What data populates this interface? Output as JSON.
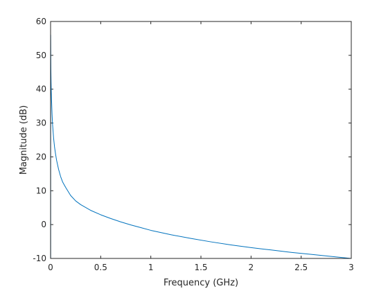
{
  "chart_data": {
    "type": "line",
    "title": "",
    "xlabel": "Frequency (GHz)",
    "ylabel": "Magnitude (dB)",
    "xlim": [
      0,
      3
    ],
    "ylim": [
      -10,
      60
    ],
    "xticks": [
      0,
      0.5,
      1,
      1.5,
      2,
      2.5,
      3
    ],
    "xtick_labels": [
      "0",
      "0.5",
      "1",
      "1.5",
      "2",
      "2.5",
      "3"
    ],
    "yticks": [
      -10,
      0,
      10,
      20,
      30,
      40,
      50,
      60
    ],
    "ytick_labels": [
      "-10",
      "0",
      "10",
      "20",
      "30",
      "40",
      "50",
      "60"
    ],
    "grid": false,
    "colors": {
      "line": "#0072bd",
      "axes": "#262626"
    },
    "series": [
      {
        "x": [
          0.001,
          0.002,
          0.003,
          0.005,
          0.007,
          0.01,
          0.015,
          0.02,
          0.03,
          0.04,
          0.05,
          0.06,
          0.08,
          0.1,
          0.12,
          0.15,
          0.2,
          0.25,
          0.3,
          0.4,
          0.5,
          0.6,
          0.7,
          0.8,
          0.9,
          1.0,
          1.2,
          1.4,
          1.6,
          1.8,
          2.0,
          2.2,
          2.4,
          2.6,
          2.8,
          3.0
        ],
        "y": [
          56,
          50,
          46,
          42,
          39.5,
          36.5,
          32.5,
          29.5,
          25.6,
          22.8,
          20.8,
          19.0,
          16.3,
          14.2,
          12.6,
          11.0,
          8.6,
          7.0,
          5.9,
          4.2,
          2.9,
          1.8,
          0.8,
          -0.1,
          -0.9,
          -1.7,
          -3.0,
          -4.1,
          -5.1,
          -6.0,
          -6.8,
          -7.5,
          -8.2,
          -8.8,
          -9.4,
          -10.0
        ]
      }
    ]
  }
}
